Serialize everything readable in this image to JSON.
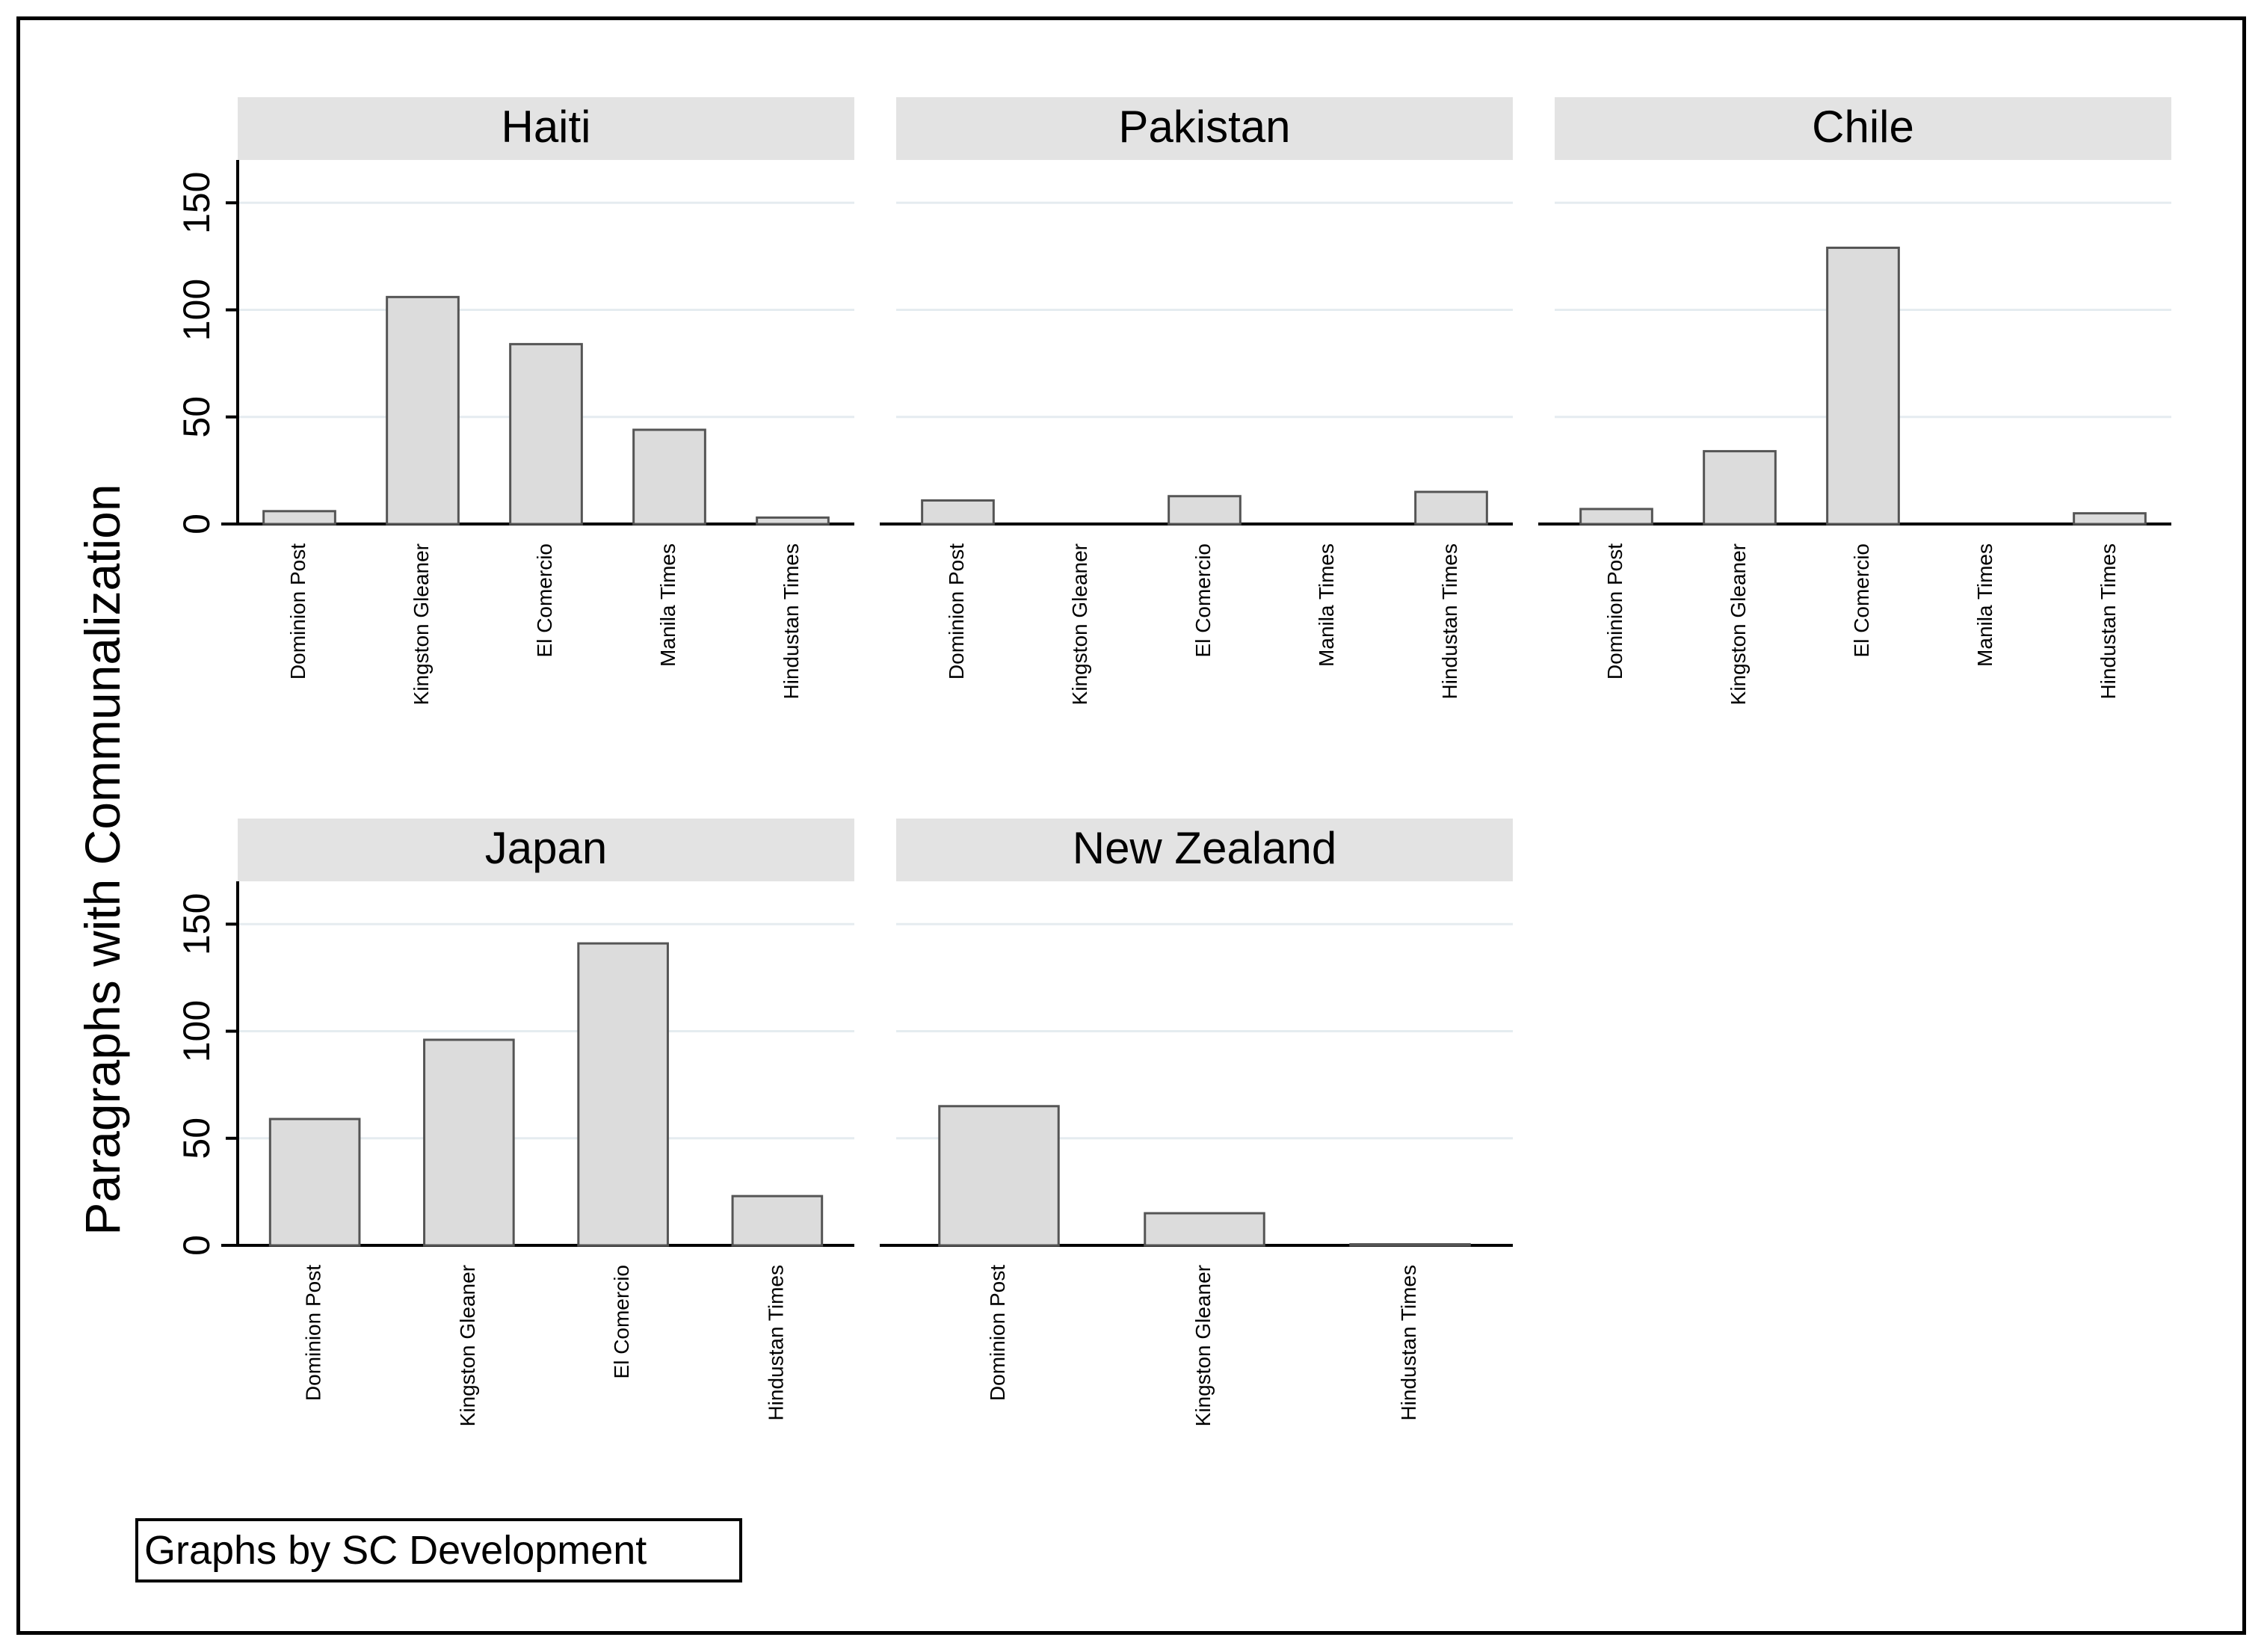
{
  "ylabel": "Paragraphs with Communalization",
  "note": "Graphs by SC Development",
  "colors": {
    "bar_fill": "#dcdcdc",
    "bar_stroke": "#555555",
    "strip_fill": "#e3e3e3",
    "grid": "#e5ecf0"
  },
  "chart_data": [
    {
      "type": "bar",
      "title": "Haiti",
      "ylim": [
        0,
        170
      ],
      "yticks": [
        0,
        50,
        100,
        150
      ],
      "grid": true,
      "categories": [
        "Dominion Post",
        "Kingston Gleaner",
        "El Comercio",
        "Manila Times",
        "Hindustan Times"
      ],
      "values": [
        6,
        106,
        84,
        44,
        3
      ]
    },
    {
      "type": "bar",
      "title": "Pakistan",
      "ylim": [
        0,
        170
      ],
      "yticks": [
        0,
        50,
        100,
        150
      ],
      "grid": true,
      "categories": [
        "Dominion Post",
        "Kingston Gleaner",
        "El Comercio",
        "Manila Times",
        "Hindustan Times"
      ],
      "values": [
        11,
        0,
        13,
        0,
        15
      ]
    },
    {
      "type": "bar",
      "title": "Chile",
      "ylim": [
        0,
        170
      ],
      "yticks": [
        0,
        50,
        100,
        150
      ],
      "grid": true,
      "categories": [
        "Dominion Post",
        "Kingston Gleaner",
        "El Comercio",
        "Manila Times",
        "Hindustan Times"
      ],
      "values": [
        7,
        34,
        129,
        0,
        5
      ]
    },
    {
      "type": "bar",
      "title": "Japan",
      "ylim": [
        0,
        170
      ],
      "yticks": [
        0,
        50,
        100,
        150
      ],
      "grid": true,
      "categories": [
        "Dominion Post",
        "Kingston Gleaner",
        "El Comercio",
        "Hindustan Times"
      ],
      "values": [
        59,
        96,
        141,
        23
      ]
    },
    {
      "type": "bar",
      "title": "New Zealand",
      "ylim": [
        0,
        170
      ],
      "yticks": [
        0,
        50,
        100,
        150
      ],
      "grid": true,
      "categories": [
        "Dominion Post",
        "Kingston Gleaner",
        "Hindustan Times"
      ],
      "values": [
        65,
        15,
        0.5
      ]
    }
  ]
}
